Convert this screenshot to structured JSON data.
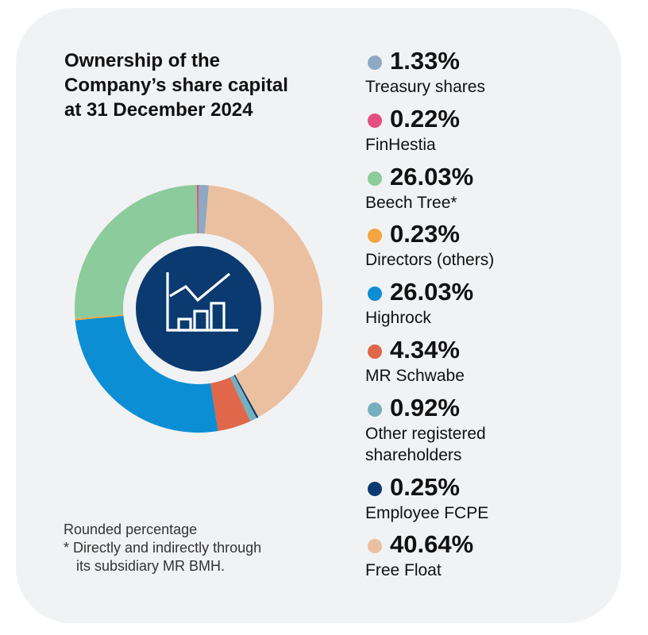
{
  "chart_data": {
    "type": "pie",
    "variant": "donut",
    "title_lines": [
      "Ownership of the",
      "Company’s share capital",
      "at 31 December 2024"
    ],
    "unit": "%",
    "slices": [
      {
        "value": 1.33,
        "value_label": "1.33%",
        "label_lines": [
          "Treasury shares"
        ],
        "color": "#8fa9c2"
      },
      {
        "value": 0.22,
        "value_label": "0.22%",
        "label_lines": [
          "FinHestia"
        ],
        "color": "#e44d7f"
      },
      {
        "value": 26.03,
        "value_label": "26.03%",
        "label_lines": [
          "Beech Tree*"
        ],
        "color": "#8ccb9b"
      },
      {
        "value": 0.23,
        "value_label": "0.23%",
        "label_lines": [
          "Directors (others)"
        ],
        "color": "#f4a53f"
      },
      {
        "value": 26.03,
        "value_label": "26.03%",
        "label_lines": [
          "Highrock"
        ],
        "color": "#0b8ed3"
      },
      {
        "value": 4.34,
        "value_label": "4.34%",
        "label_lines": [
          "MR Schwabe"
        ],
        "color": "#e0674a"
      },
      {
        "value": 0.92,
        "value_label": "0.92%",
        "label_lines": [
          "Other registered",
          "shareholders"
        ],
        "color": "#76afbe"
      },
      {
        "value": 0.25,
        "value_label": "0.25%",
        "label_lines": [
          "Employee FCPE"
        ],
        "color": "#0a3a70"
      },
      {
        "value": 40.64,
        "value_label": "40.64%",
        "label_lines": [
          "Free Float"
        ],
        "color": "#eac0a0"
      }
    ],
    "draw_order": [
      0,
      8,
      7,
      6,
      5,
      4,
      3,
      2,
      1
    ],
    "center_icon": "growth-chart-icon",
    "center_color": "#0a3a70",
    "legend_position": "right"
  },
  "notes": {
    "line1": "Rounded percentage",
    "line2": "* Directly and indirectly through",
    "line3": "its subsidiary MR BMH."
  }
}
